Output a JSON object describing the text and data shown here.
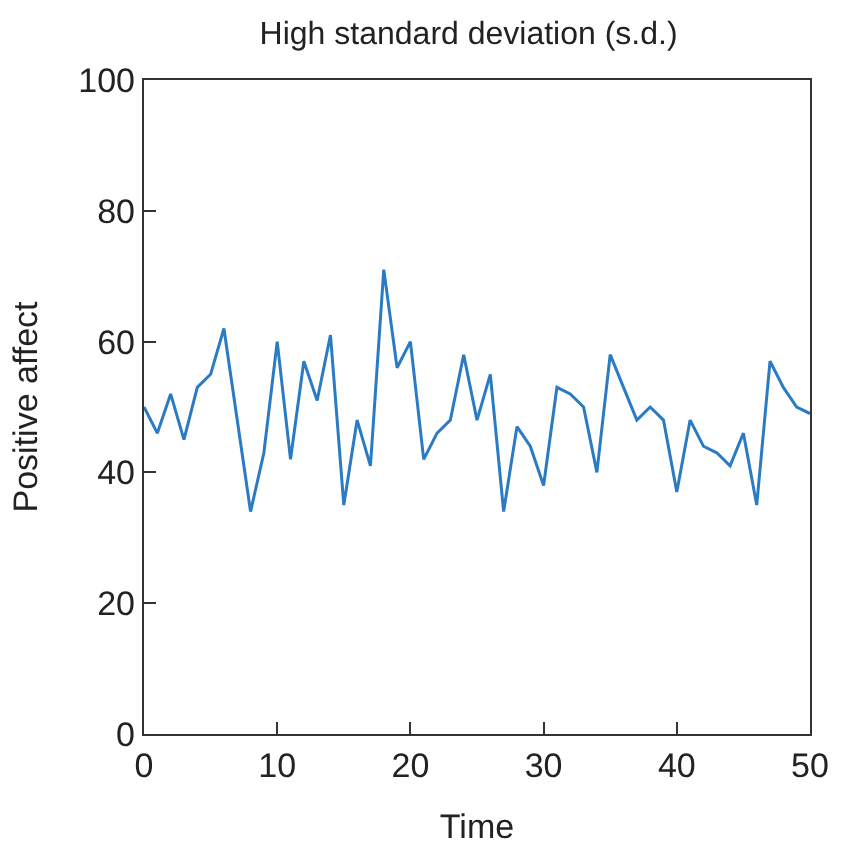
{
  "chart_data": {
    "type": "line",
    "title": "High standard deviation (s.d.)",
    "xlabel": "Time",
    "ylabel": "Positive affect",
    "x": [
      0,
      1,
      2,
      3,
      4,
      5,
      6,
      7,
      8,
      9,
      10,
      11,
      12,
      13,
      14,
      15,
      16,
      17,
      18,
      19,
      20,
      21,
      22,
      23,
      24,
      25,
      26,
      27,
      28,
      29,
      30,
      31,
      32,
      33,
      34,
      35,
      36,
      37,
      38,
      39,
      40,
      41,
      42,
      43,
      44,
      45,
      46,
      47,
      48,
      49,
      50
    ],
    "series": [
      {
        "color": "#2a7bc4",
        "values": [
          50,
          46,
          52,
          45,
          53,
          55,
          62,
          48,
          34,
          43,
          60,
          42,
          57,
          51,
          61,
          35,
          48,
          41,
          71,
          56,
          60,
          42,
          46,
          48,
          58,
          48,
          55,
          34,
          47,
          44,
          38,
          53,
          52,
          50,
          40,
          58,
          53,
          48,
          50,
          48,
          37,
          48,
          44,
          43,
          41,
          46,
          35,
          57,
          53,
          50,
          49
        ]
      }
    ],
    "xlim": [
      0,
      50
    ],
    "ylim": [
      0,
      100
    ],
    "xticks": [
      0,
      10,
      20,
      30,
      40,
      50
    ],
    "yticks": [
      0,
      20,
      40,
      60,
      80,
      100
    ],
    "marker": "none",
    "line_style": "solid"
  }
}
